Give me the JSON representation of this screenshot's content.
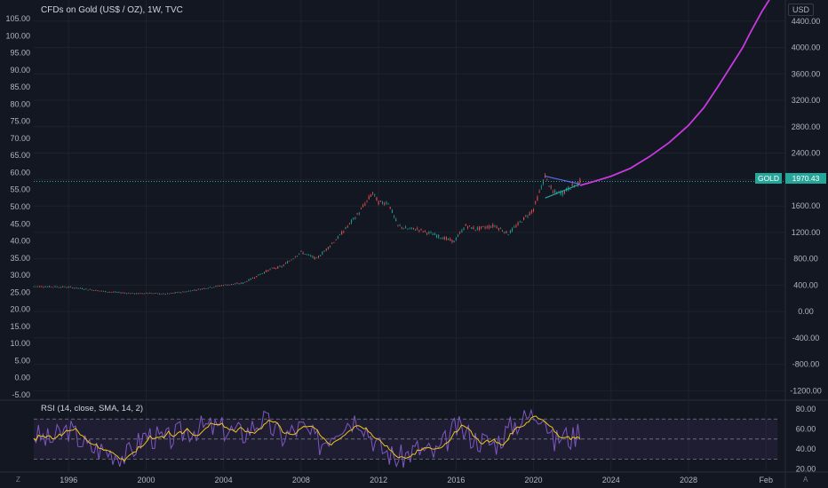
{
  "header": {
    "title": "CFDs on Gold (US$ / OZ), 1W, TVC",
    "unit": "USD",
    "symbol": "GOLD",
    "last_price": "1970.43"
  },
  "rsi": {
    "label": "RSI (14, close, SMA, 14, 2)"
  },
  "corners": {
    "left": "Z",
    "right": "A"
  },
  "colors": {
    "background": "#131722",
    "up": "#26a69a",
    "down": "#ef5350",
    "projection": "#c839e0",
    "rsi_line": "#7e57c2",
    "rsi_ma": "#f0c419",
    "triangle_upper": "#5a6cf0",
    "triangle_lower": "#26a69a"
  },
  "chart_data": [
    {
      "type": "line",
      "title": "CFDs on Gold (US$ / OZ), 1W, TVC",
      "left_axis_ticks": [
        "105.00",
        "100.00",
        "95.00",
        "90.00",
        "85.00",
        "80.00",
        "75.00",
        "70.00",
        "65.00",
        "60.00",
        "55.00",
        "50.00",
        "45.00",
        "40.00",
        "35.00",
        "30.00",
        "25.00",
        "20.00",
        "15.00",
        "10.00",
        "5.00",
        "0.00",
        "-5.00"
      ],
      "right_axis_ticks": [
        "4400.00",
        "4000.00",
        "3600.00",
        "3200.00",
        "2800.00",
        "2400.00",
        "2000.00",
        "1600.00",
        "1200.00",
        "800.00",
        "400.00",
        "0.00",
        "-400.00",
        "-800.00",
        "-1200.00"
      ],
      "x_ticks": [
        "1996",
        "2000",
        "2004",
        "2008",
        "2012",
        "2016",
        "2020",
        "2024",
        "2028",
        "Feb"
      ],
      "xlim": [
        1994.2,
        2033.0
      ],
      "ylim": [
        -1330,
        4720
      ],
      "price_series": {
        "name": "GOLD",
        "x": [
          1994.2,
          1996,
          1998,
          1999.5,
          2000,
          2001,
          2002,
          2003,
          2004,
          2005,
          2006,
          2006.5,
          2007,
          2008,
          2008.8,
          2009.5,
          2010,
          2011,
          2011.7,
          2012,
          2012.5,
          2013,
          2013.5,
          2014,
          2015,
          2015.9,
          2016.5,
          2017,
          2018,
          2018.7,
          2019.3,
          2020,
          2020.6,
          2021,
          2021.5,
          2022,
          2022.4
        ],
        "y": [
          380,
          370,
          300,
          270,
          280,
          265,
          300,
          350,
          400,
          430,
          580,
          650,
          680,
          900,
          800,
          1000,
          1150,
          1500,
          1800,
          1650,
          1650,
          1300,
          1250,
          1250,
          1150,
          1060,
          1300,
          1250,
          1300,
          1180,
          1350,
          1550,
          2050,
          1800,
          1800,
          1900,
          1970
        ]
      },
      "projection": {
        "name": "projection",
        "x": [
          2022.4,
          2023,
          2024,
          2025,
          2026,
          2027,
          2028,
          2028.8,
          2029.5,
          2030.2,
          2030.8,
          2031.2,
          2031.8,
          2032.3
        ],
        "y": [
          1910,
          1960,
          2050,
          2170,
          2350,
          2560,
          2820,
          3090,
          3400,
          3720,
          4000,
          4230,
          4550,
          4780
        ]
      },
      "triangle": {
        "apex": [
          2022.4,
          1930
        ],
        "upper_start": [
          2020.6,
          2050
        ],
        "lower_start": [
          2020.6,
          1720
        ]
      },
      "last_price": 1970.43
    },
    {
      "type": "line",
      "title": "RSI (14, close, SMA, 14, 2)",
      "y_ticks": [
        "80.00",
        "60.00",
        "40.00",
        "20.00"
      ],
      "ylim": [
        17,
        88
      ],
      "bands": [
        30,
        50,
        70
      ],
      "series": [
        {
          "name": "RSI",
          "x": [
            1994.2,
            1995,
            1996,
            1997,
            1998,
            1999,
            2000,
            2001,
            2002,
            2003,
            2004,
            2005,
            2006,
            2007,
            2008,
            2009,
            2010,
            2011,
            2012,
            2013,
            2014,
            2015,
            2016,
            2017,
            2018,
            2019,
            2020,
            2020.5,
            2021,
            2021.5,
            2022,
            2022.4
          ],
          "y": [
            55,
            48,
            60,
            42,
            38,
            33,
            55,
            48,
            58,
            62,
            60,
            55,
            70,
            52,
            62,
            45,
            65,
            72,
            42,
            30,
            40,
            35,
            62,
            50,
            45,
            65,
            75,
            78,
            45,
            55,
            50,
            62
          ]
        }
      ]
    }
  ]
}
